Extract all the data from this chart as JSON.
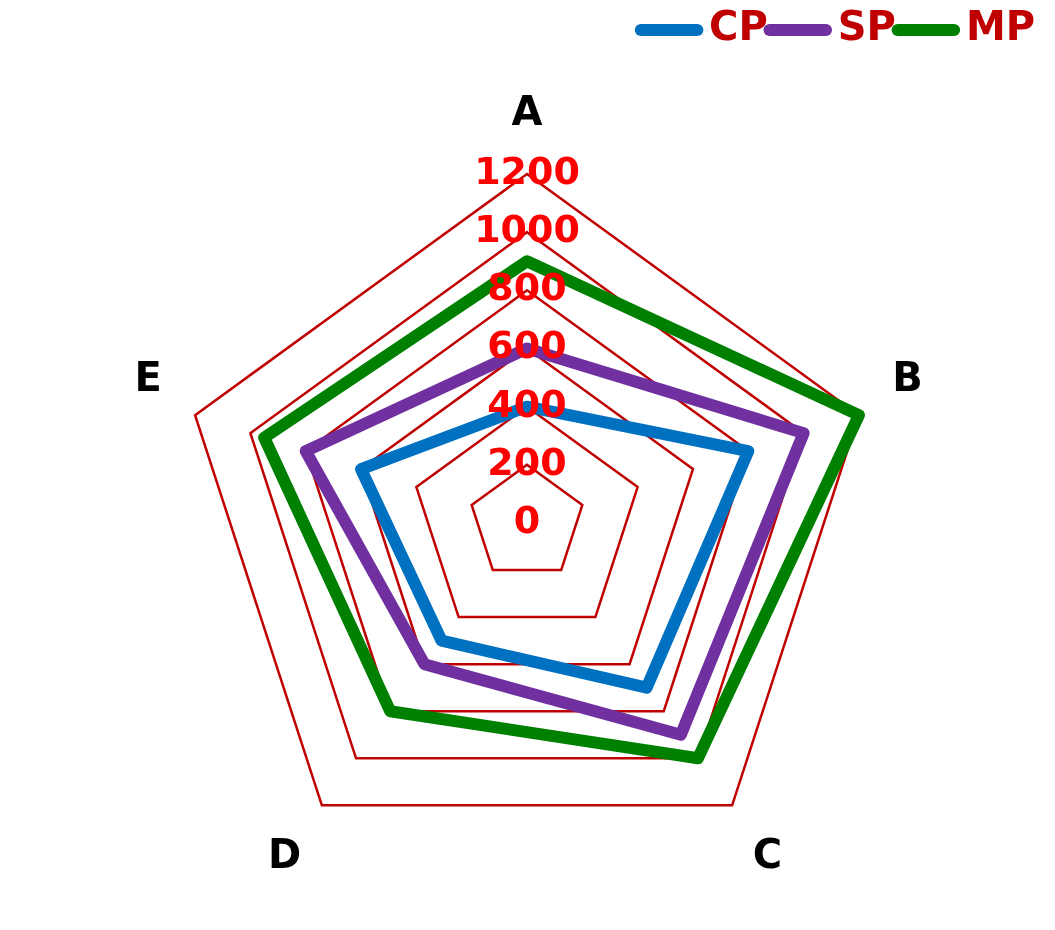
{
  "chart_data": {
    "type": "radar",
    "categories": [
      "A",
      "B",
      "C",
      "D",
      "E"
    ],
    "series": [
      {
        "name": "CP",
        "color": "#0070c0",
        "values": [
          400,
          800,
          700,
          500,
          600
        ]
      },
      {
        "name": "SP",
        "color": "#7030a0",
        "values": [
          600,
          1000,
          900,
          600,
          800
        ]
      },
      {
        "name": "MP",
        "color": "#008000",
        "values": [
          900,
          1200,
          1000,
          800,
          950
        ]
      }
    ],
    "ylim": [
      0,
      1200
    ],
    "yticks": [
      0,
      200,
      400,
      600,
      800,
      1000,
      1200
    ],
    "grid": true,
    "legend": "top right",
    "marker": "none",
    "line_style": "solid"
  }
}
